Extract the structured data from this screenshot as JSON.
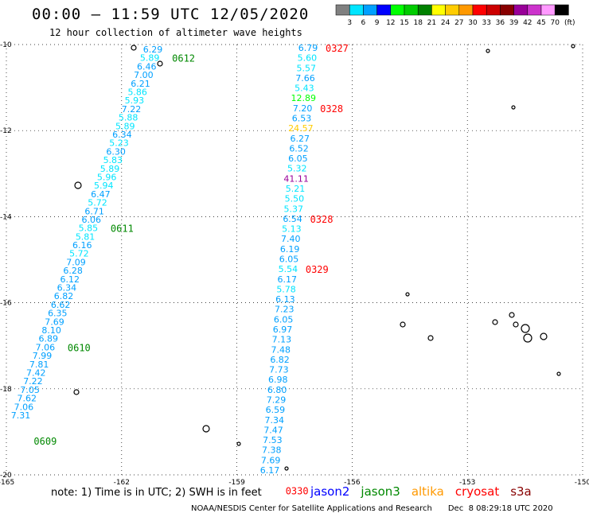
{
  "header": {
    "title": "00:00 – 11:59 UTC 12/05/2020",
    "subtitle": "12 hour collection of altimeter wave heights"
  },
  "legend": {
    "unit": "(ft)",
    "bins": [
      {
        "label": "3",
        "color": "#808080"
      },
      {
        "label": "6",
        "color": "#00e5ff"
      },
      {
        "label": "9",
        "color": "#00a0ff"
      },
      {
        "label": "12",
        "color": "#0000ff"
      },
      {
        "label": "15",
        "color": "#00ff00"
      },
      {
        "label": "18",
        "color": "#00cc00"
      },
      {
        "label": "21",
        "color": "#008000"
      },
      {
        "label": "24",
        "color": "#ffff00"
      },
      {
        "label": "27",
        "color": "#ffcc00"
      },
      {
        "label": "30",
        "color": "#ff9900"
      },
      {
        "label": "33",
        "color": "#ff0000"
      },
      {
        "label": "36",
        "color": "#cc0000"
      },
      {
        "label": "39",
        "color": "#880000"
      },
      {
        "label": "42",
        "color": "#990099"
      },
      {
        "label": "45",
        "color": "#cc33cc"
      },
      {
        "label": "70",
        "color": "#ff99ff"
      },
      {
        "label": "",
        "color": "#000000"
      }
    ]
  },
  "map": {
    "lon_range": [
      -165,
      -150
    ],
    "lat_range": [
      -20,
      -10
    ],
    "lon_ticks": [
      "-165",
      "-162",
      "-159",
      "-156",
      "-153",
      "-150"
    ],
    "lat_ticks": [
      "-10",
      "-12",
      "-14",
      "-16",
      "-18",
      "-20"
    ],
    "grid": "dotted"
  },
  "tracks": [
    {
      "satellite": "jason3",
      "time_labels": [
        {
          "text": "0612",
          "after_index": 1
        },
        {
          "text": "0611",
          "after_index": 21
        },
        {
          "text": "0610",
          "after_index": 35
        },
        {
          "text": "0609",
          "after_index": 46
        }
      ],
      "values": [
        "6.29",
        "5.89",
        "6.46",
        "7.00",
        "6.21",
        "5.86",
        "5.93",
        "7.22",
        "5.88",
        "5.89",
        "6.34",
        "5.23",
        "6.30",
        "5.83",
        "5.89",
        "5.96",
        "5.94",
        "6.47",
        "5.72",
        "6.71",
        "6.06",
        "5.85",
        "5.81",
        "6.16",
        "5.72",
        "7.09",
        "6.28",
        "6.12",
        "6.34",
        "6.82",
        "6.62",
        "6.35",
        "7.69",
        "8.10",
        "6.89",
        "7.06",
        "7.99",
        "7.81",
        "7.42",
        "7.22",
        "7.05",
        "7.62",
        "7.06",
        "7.31"
      ]
    },
    {
      "satellite": "cryosat",
      "time_labels": [
        {
          "text": "0327",
          "after_index": 0
        },
        {
          "text": "0328",
          "after_index": 6
        },
        {
          "text": "0328",
          "after_index": 17
        },
        {
          "text": "0329",
          "after_index": 22
        },
        {
          "text": "0330",
          "after_index": 44
        }
      ],
      "values": [
        "6.79",
        "5.60",
        "5.57",
        "7.66",
        "5.43",
        "12.89",
        "7.20",
        "6.53",
        "24.57",
        "6.27",
        "6.52",
        "6.05",
        "5.32",
        "41.11",
        "5.21",
        "5.50",
        "5.37",
        "6.54",
        "5.13",
        "7.40",
        "6.19",
        "6.05",
        "5.54",
        "6.17",
        "5.78",
        "6.13",
        "7.23",
        "6.05",
        "6.97",
        "7.13",
        "7.48",
        "6.82",
        "7.73",
        "6.98",
        "6.80",
        "7.29",
        "6.59",
        "7.34",
        "7.47",
        "7.53",
        "7.38",
        "7.69",
        "6.17"
      ]
    }
  ],
  "footer": {
    "note": "note: 1) Time is in UTC; 2) SWH is in feet",
    "satellites": [
      {
        "name": "jason2",
        "color": "#0000ff"
      },
      {
        "name": "jason3",
        "color": "#008800"
      },
      {
        "name": "altika",
        "color": "#ff9900"
      },
      {
        "name": "cryosat",
        "color": "#ff0000"
      },
      {
        "name": "s3a",
        "color": "#880000"
      }
    ],
    "credit": "NOAA/NESDIS Center for Satellite Applications and Research",
    "timestamp": "Dec  8 08:29:18 UTC 2020"
  }
}
